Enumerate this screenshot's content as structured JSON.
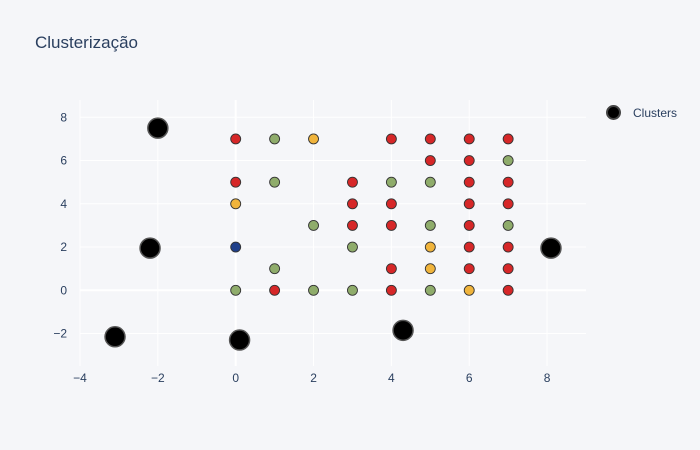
{
  "chart_data": {
    "type": "scatter",
    "title": "Clusterização",
    "xlabel": "",
    "ylabel": "",
    "xlim": [
      -4,
      9
    ],
    "ylim": [
      -3.5,
      8.8
    ],
    "x_ticks": [
      -4,
      -2,
      0,
      2,
      4,
      6,
      8
    ],
    "y_ticks": [
      -2,
      0,
      2,
      4,
      6,
      8
    ],
    "grid": true,
    "legend_position": "top-right",
    "colors": {
      "red": "#d62728",
      "green": "#8fac6b",
      "yellow": "#f0b43c",
      "blue": "#1f3f8a",
      "cluster": "#000000"
    },
    "series": [
      {
        "name": "",
        "show_in_legend": false,
        "points": [
          {
            "x": 0,
            "y": 7,
            "c": "red"
          },
          {
            "x": 1,
            "y": 7,
            "c": "green"
          },
          {
            "x": 2,
            "y": 7,
            "c": "yellow"
          },
          {
            "x": 4,
            "y": 7,
            "c": "red"
          },
          {
            "x": 5,
            "y": 7,
            "c": "red"
          },
          {
            "x": 6,
            "y": 7,
            "c": "red"
          },
          {
            "x": 7,
            "y": 7,
            "c": "red"
          },
          {
            "x": 5,
            "y": 6,
            "c": "red"
          },
          {
            "x": 6,
            "y": 6,
            "c": "red"
          },
          {
            "x": 7,
            "y": 6,
            "c": "green"
          },
          {
            "x": 0,
            "y": 5,
            "c": "red"
          },
          {
            "x": 1,
            "y": 5,
            "c": "green"
          },
          {
            "x": 3,
            "y": 5,
            "c": "red"
          },
          {
            "x": 4,
            "y": 5,
            "c": "green"
          },
          {
            "x": 5,
            "y": 5,
            "c": "green"
          },
          {
            "x": 6,
            "y": 5,
            "c": "red"
          },
          {
            "x": 7,
            "y": 5,
            "c": "red"
          },
          {
            "x": 0,
            "y": 4,
            "c": "yellow"
          },
          {
            "x": 3,
            "y": 4,
            "c": "red"
          },
          {
            "x": 4,
            "y": 4,
            "c": "red"
          },
          {
            "x": 6,
            "y": 4,
            "c": "red"
          },
          {
            "x": 7,
            "y": 4,
            "c": "red"
          },
          {
            "x": 2,
            "y": 3,
            "c": "green"
          },
          {
            "x": 3,
            "y": 3,
            "c": "red"
          },
          {
            "x": 4,
            "y": 3,
            "c": "red"
          },
          {
            "x": 5,
            "y": 3,
            "c": "green"
          },
          {
            "x": 6,
            "y": 3,
            "c": "red"
          },
          {
            "x": 7,
            "y": 3,
            "c": "green"
          },
          {
            "x": 0,
            "y": 2,
            "c": "blue"
          },
          {
            "x": 3,
            "y": 2,
            "c": "green"
          },
          {
            "x": 5,
            "y": 2,
            "c": "yellow"
          },
          {
            "x": 6,
            "y": 2,
            "c": "red"
          },
          {
            "x": 7,
            "y": 2,
            "c": "red"
          },
          {
            "x": 1,
            "y": 1,
            "c": "green"
          },
          {
            "x": 4,
            "y": 1,
            "c": "red"
          },
          {
            "x": 5,
            "y": 1,
            "c": "yellow"
          },
          {
            "x": 6,
            "y": 1,
            "c": "red"
          },
          {
            "x": 7,
            "y": 1,
            "c": "red"
          },
          {
            "x": 0,
            "y": 0,
            "c": "green"
          },
          {
            "x": 1,
            "y": 0,
            "c": "red"
          },
          {
            "x": 2,
            "y": 0,
            "c": "green"
          },
          {
            "x": 3,
            "y": 0,
            "c": "green"
          },
          {
            "x": 4,
            "y": 0,
            "c": "red"
          },
          {
            "x": 5,
            "y": 0,
            "c": "green"
          },
          {
            "x": 6,
            "y": 0,
            "c": "yellow"
          },
          {
            "x": 7,
            "y": 0,
            "c": "red"
          }
        ]
      },
      {
        "name": "Clusters",
        "show_in_legend": true,
        "points": [
          {
            "x": -2.0,
            "y": 7.5
          },
          {
            "x": -2.2,
            "y": 1.95
          },
          {
            "x": -3.1,
            "y": -2.15
          },
          {
            "x": 0.1,
            "y": -2.3
          },
          {
            "x": 4.3,
            "y": -1.85
          },
          {
            "x": 8.1,
            "y": 1.95
          }
        ]
      }
    ]
  }
}
